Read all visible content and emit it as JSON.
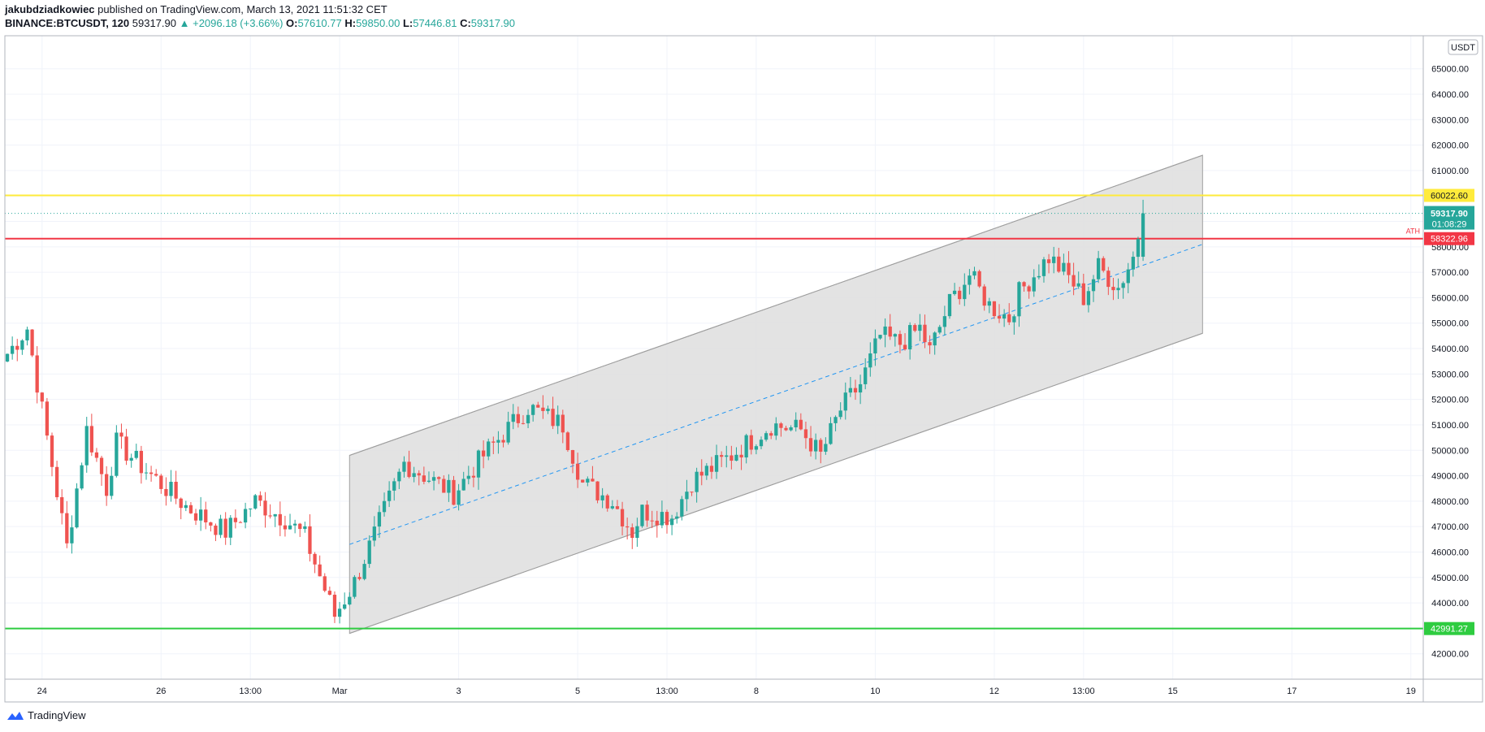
{
  "header": {
    "author": "jakubdziadkowiec",
    "published_text": " published on TradingView.com, March 13, 2021 11:51:32 CET",
    "symbol_line": "BINANCE:BTCUSDT, 120",
    "last": "59317.90",
    "change": "▲ +2096.18 (+3.66%)",
    "o_label": "O:",
    "o": "57610.77",
    "h_label": "H:",
    "h": "59850.00",
    "l_label": "L:",
    "l": "57446.81",
    "c_label": "C:",
    "c": "59317.90"
  },
  "footer": {
    "brand": "TradingView"
  },
  "chart_data": {
    "type": "candlestick",
    "symbol": "BINANCE:BTCUSDT",
    "interval": "120",
    "currency": "USDT",
    "grid": true,
    "y_ticks": [
      42000,
      43000,
      44000,
      45000,
      46000,
      47000,
      48000,
      49000,
      50000,
      51000,
      52000,
      53000,
      54000,
      55000,
      56000,
      57000,
      58000,
      59000,
      60000,
      61000,
      62000,
      63000,
      64000,
      65000
    ],
    "y_tick_format": "2dp",
    "ylim": [
      41000,
      66300
    ],
    "x_ticks": [
      {
        "label": "24",
        "bar": 7
      },
      {
        "label": "26",
        "bar": 31
      },
      {
        "label": "13:00",
        "bar": 49
      },
      {
        "label": "Mar",
        "bar": 67
      },
      {
        "label": "3",
        "bar": 91
      },
      {
        "label": "5",
        "bar": 115
      },
      {
        "label": "13:00",
        "bar": 133
      },
      {
        "label": "8",
        "bar": 151
      },
      {
        "label": "10",
        "bar": 175
      },
      {
        "label": "12",
        "bar": 199
      },
      {
        "label": "13:00",
        "bar": 217
      },
      {
        "label": "15",
        "bar": 235
      },
      {
        "label": "17",
        "bar": 259
      },
      {
        "label": "19",
        "bar": 283
      }
    ],
    "total_bars": 286,
    "candles_path": [
      [
        0,
        53800
      ],
      [
        4,
        54800
      ],
      [
        12,
        46200
      ],
      [
        16,
        50800
      ],
      [
        20,
        48500
      ],
      [
        22,
        50300
      ],
      [
        28,
        49200
      ],
      [
        36,
        47800
      ],
      [
        44,
        46800
      ],
      [
        50,
        48000
      ],
      [
        56,
        47300
      ],
      [
        60,
        46600
      ],
      [
        66,
        43500
      ],
      [
        70,
        44800
      ],
      [
        80,
        49500
      ],
      [
        90,
        48300
      ],
      [
        96,
        49800
      ],
      [
        105,
        51700
      ],
      [
        112,
        51000
      ],
      [
        116,
        48700
      ],
      [
        122,
        48000
      ],
      [
        126,
        46800
      ],
      [
        128,
        47600
      ],
      [
        134,
        47400
      ],
      [
        138,
        48800
      ],
      [
        146,
        49800
      ],
      [
        154,
        51000
      ],
      [
        160,
        50800
      ],
      [
        164,
        49800
      ],
      [
        168,
        51600
      ],
      [
        172,
        52600
      ],
      [
        176,
        54500
      ],
      [
        180,
        54200
      ],
      [
        184,
        54800
      ],
      [
        186,
        53900
      ],
      [
        190,
        55800
      ],
      [
        194,
        56900
      ],
      [
        198,
        55700
      ],
      [
        202,
        55200
      ],
      [
        204,
        56200
      ],
      [
        210,
        57600
      ],
      [
        214,
        56800
      ],
      [
        217,
        56000
      ],
      [
        220,
        57200
      ],
      [
        224,
        56400
      ],
      [
        227,
        57600
      ],
      [
        229,
        59317.9
      ]
    ],
    "last_candle": {
      "open": 57610.77,
      "high": 59850.0,
      "low": 57446.81,
      "close": 59317.9
    },
    "horizontal_levels": [
      {
        "price": 60022.6,
        "label": "60022.60",
        "color": "#ffeb3b"
      },
      {
        "price": 58322.96,
        "label": "58322.96",
        "color": "#f23645",
        "note": "ATH"
      },
      {
        "price": 42991.27,
        "label": "42991.27",
        "color": "#2ecc40"
      }
    ],
    "last_price": {
      "price": 59317.9,
      "label": "59317.90",
      "countdown": "01:08:29",
      "color": "#26a69a"
    },
    "channel": {
      "start_bar": 69,
      "end_bar": 241,
      "upper": [
        49800,
        61600
      ],
      "lower": [
        42800,
        54600
      ],
      "mid": [
        46300,
        58100
      ],
      "fill": "#e0e0e0"
    },
    "colors": {
      "up": "#26a69a",
      "down": "#ef5350",
      "grid": "#f0f3fa",
      "axis_text": "#131722"
    }
  }
}
